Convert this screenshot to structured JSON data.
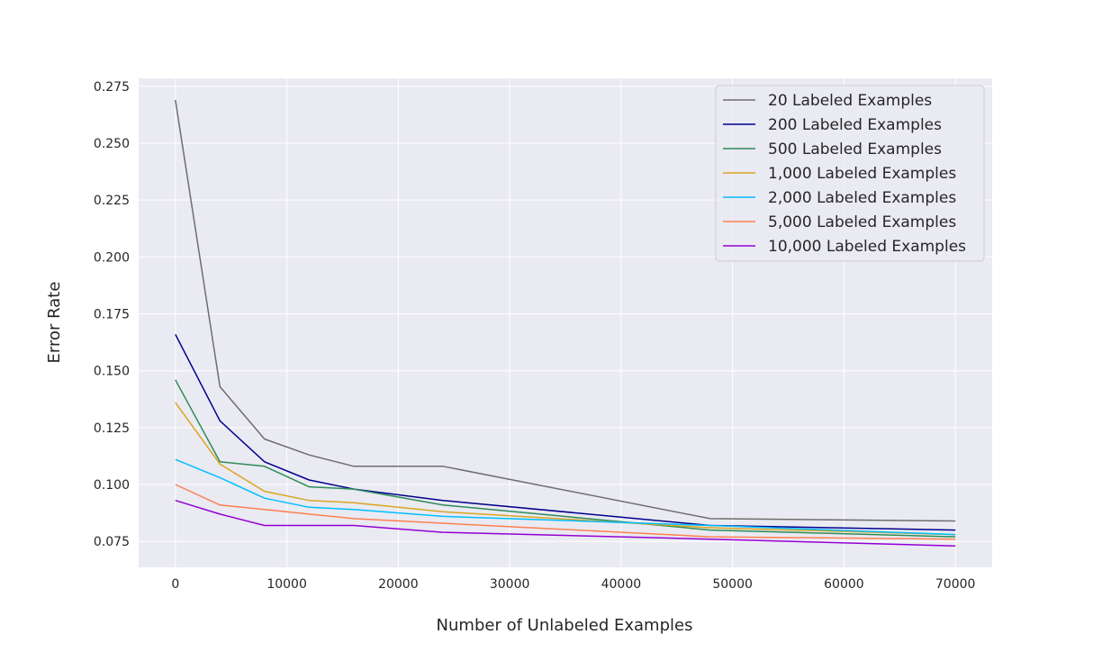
{
  "chart_data": {
    "type": "line",
    "title": "",
    "xlabel": "Number of Unlabeled Examples",
    "ylabel": "Error Rate",
    "xlim": [
      -3300,
      73300
    ],
    "ylim": [
      0.0636,
      0.2785
    ],
    "xticks": [
      0,
      10000,
      20000,
      30000,
      40000,
      50000,
      60000,
      70000
    ],
    "yticks": [
      0.075,
      0.1,
      0.125,
      0.15,
      0.175,
      0.2,
      0.225,
      0.25,
      0.275
    ],
    "ytick_labels": [
      "0.075",
      "0.100",
      "0.125",
      "0.150",
      "0.175",
      "0.200",
      "0.225",
      "0.250",
      "0.275"
    ],
    "grid": true,
    "legend_position": "top-right",
    "x": [
      0,
      4000,
      8000,
      12000,
      16000,
      24000,
      48000,
      70000
    ],
    "series": [
      {
        "name": "20 Labeled Examples",
        "color": "#6e6e6e",
        "values": [
          0.269,
          0.143,
          0.12,
          0.113,
          0.108,
          0.108,
          0.085,
          0.084
        ]
      },
      {
        "name": "200 Labeled Examples",
        "color": "#00008b",
        "values": [
          0.166,
          0.128,
          0.11,
          0.102,
          0.098,
          0.093,
          0.082,
          0.08
        ]
      },
      {
        "name": "500 Labeled Examples",
        "color": "#2e8b57",
        "values": [
          0.146,
          0.11,
          0.108,
          0.099,
          0.098,
          0.091,
          0.08,
          0.077
        ]
      },
      {
        "name": "1,000 Labeled Examples",
        "color": "#daa520",
        "values": [
          0.136,
          0.109,
          0.097,
          0.093,
          0.092,
          0.088,
          0.081,
          0.078
        ]
      },
      {
        "name": "2,000 Labeled Examples",
        "color": "#00bfff",
        "values": [
          0.111,
          0.103,
          0.094,
          0.09,
          0.089,
          0.086,
          0.082,
          0.078
        ]
      },
      {
        "name": "5,000 Labeled Examples",
        "color": "#ff7f50",
        "values": [
          0.1,
          0.091,
          0.089,
          0.087,
          0.085,
          0.083,
          0.077,
          0.076
        ]
      },
      {
        "name": "10,000 Labeled Examples",
        "color": "#9400d3",
        "values": [
          0.093,
          0.087,
          0.082,
          0.082,
          0.082,
          0.079,
          0.076,
          0.073
        ]
      }
    ]
  }
}
